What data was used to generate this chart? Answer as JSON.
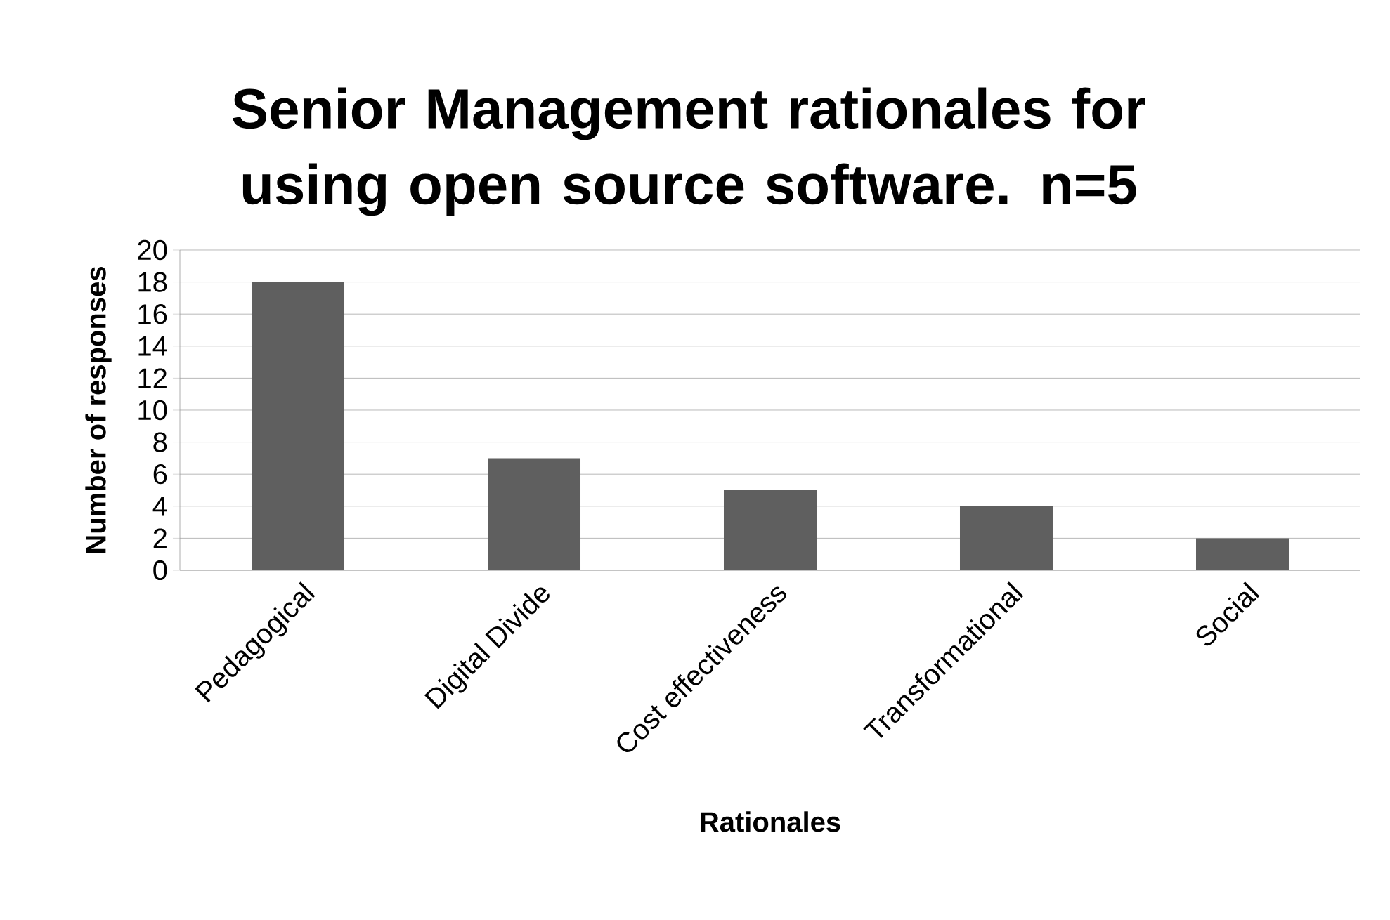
{
  "chart_data": {
    "type": "bar",
    "title": "Senior Management rationales for using open source software. n=5",
    "xlabel": "Rationales",
    "ylabel": "Number of responses",
    "categories": [
      "Pedagogical",
      "Digital Divide",
      "Cost effectiveness",
      "Transformational",
      "Social"
    ],
    "values": [
      18,
      7,
      5,
      4,
      2
    ],
    "color": "#5f5f5f",
    "ylim": [
      0,
      20
    ],
    "yticks": [
      0,
      2,
      4,
      6,
      8,
      10,
      12,
      14,
      16,
      18,
      20
    ],
    "grid": "y"
  }
}
